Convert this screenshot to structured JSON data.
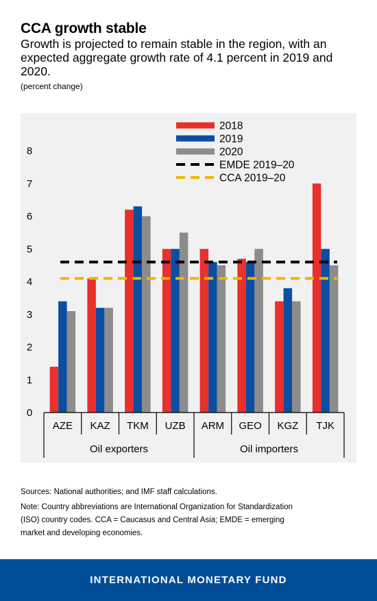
{
  "header": {
    "title": "CCA growth stable",
    "subtitle": "Growth is projected to remain stable in the region, with an expected aggregate growth rate of 4.1 percent in 2019 and 2020.",
    "units": "(percent change)"
  },
  "chart_data": {
    "type": "bar",
    "categories": [
      "AZE",
      "KAZ",
      "TKM",
      "UZB",
      "ARM",
      "GEO",
      "KGZ",
      "TJK"
    ],
    "groups": [
      {
        "label": "Oil exporters",
        "categories": [
          "AZE",
          "KAZ",
          "TKM",
          "UZB"
        ]
      },
      {
        "label": "Oil importers",
        "categories": [
          "ARM",
          "GEO",
          "KGZ",
          "TJK"
        ]
      }
    ],
    "series": [
      {
        "name": "2018",
        "color": "#e8302c",
        "values": [
          1.4,
          4.1,
          6.2,
          5.0,
          5.0,
          4.7,
          3.4,
          7.0
        ]
      },
      {
        "name": "2019",
        "color": "#0b4ea2",
        "values": [
          3.4,
          3.2,
          6.3,
          5.0,
          4.6,
          4.6,
          3.8,
          5.0
        ]
      },
      {
        "name": "2020",
        "color": "#8c8c8c",
        "values": [
          3.1,
          3.2,
          6.0,
          5.5,
          4.5,
          5.0,
          3.4,
          4.5
        ]
      }
    ],
    "reference_lines": [
      {
        "name": "EMDE 2019–20",
        "color": "#000000",
        "value": 4.6
      },
      {
        "name": "CCA 2019–20",
        "color": "#f0b400",
        "value": 4.1
      }
    ],
    "yticks": [
      "0",
      "1",
      "2",
      "3",
      "4",
      "5",
      "6",
      "7",
      "8"
    ],
    "ylim": [
      0,
      8
    ],
    "legend_position": "top-right"
  },
  "footnotes": {
    "sources": "Sources: National authorities; and IMF staff calculations.",
    "note": "Note: Country abbreviations are International Organization for Standardization\n (ISO) country codes. CCA = Caucasus and Central Asia; EMDE = emerging\n market and developing economies."
  },
  "footer": {
    "brand": "INTERNATIONAL MONETARY FUND"
  }
}
